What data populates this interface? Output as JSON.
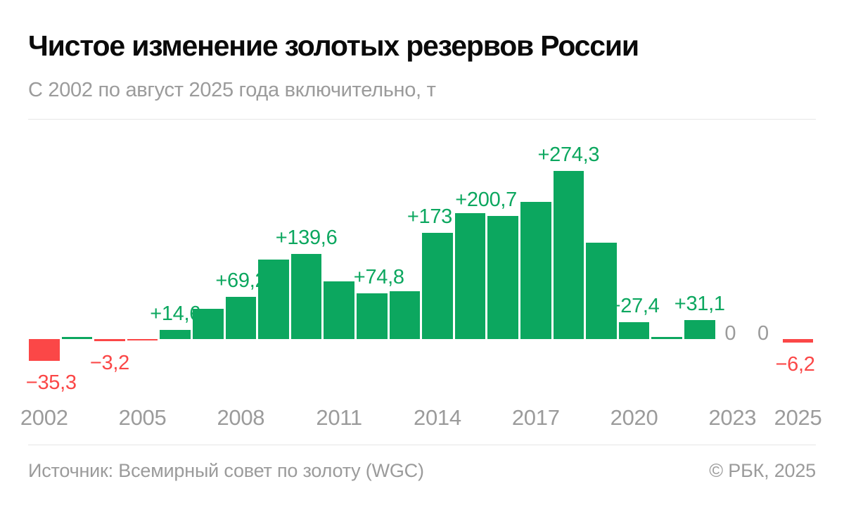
{
  "header": {
    "title": "Чистое изменение золотых резервов России",
    "subtitle": "С 2002 по август 2025 года включительно, т"
  },
  "chart_data": {
    "type": "bar",
    "title": "Чистое изменение золотых резервов России",
    "subtitle": "С 2002 по август 2025 года включительно, т",
    "unit": "т",
    "ylim": [
      -50,
      300
    ],
    "grid": false,
    "legend": "none",
    "colors": {
      "positive": "#0ca75f",
      "negative": "#fb4747",
      "zero_label": "#9b9b9b",
      "axis_tick": "#9b9b9b"
    },
    "axis_ticks": [
      2002,
      2005,
      2008,
      2011,
      2014,
      2017,
      2020,
      2023,
      2025
    ],
    "points": [
      {
        "year": 2002,
        "value": -35.3,
        "label": "−35,3",
        "label_pos": "below",
        "dx": 10
      },
      {
        "year": 2003,
        "value": 3.8,
        "label": null,
        "label_pos": null,
        "dx": 0
      },
      {
        "year": 2004,
        "value": -3.2,
        "label": "−3,2",
        "label_pos": "below",
        "dx": 0
      },
      {
        "year": 2005,
        "value": -2.3,
        "label": null,
        "label_pos": null,
        "dx": 0
      },
      {
        "year": 2006,
        "value": 14.6,
        "label": "+14,6",
        "label_pos": "above",
        "dx": 0
      },
      {
        "year": 2007,
        "value": 49.2,
        "label": null,
        "label_pos": null,
        "dx": 0
      },
      {
        "year": 2008,
        "value": 69.2,
        "label": "+69,2",
        "label_pos": "above",
        "dx": 0
      },
      {
        "year": 2009,
        "value": 130,
        "label": null,
        "label_pos": null,
        "dx": 0
      },
      {
        "year": 2010,
        "value": 139.6,
        "label": "+139,6",
        "label_pos": "above",
        "dx": 0
      },
      {
        "year": 2011,
        "value": 94,
        "label": null,
        "label_pos": null,
        "dx": 0
      },
      {
        "year": 2012,
        "value": 74.8,
        "label": "+74,8",
        "label_pos": "above",
        "dx": 10
      },
      {
        "year": 2013,
        "value": 78,
        "label": null,
        "label_pos": null,
        "dx": 0
      },
      {
        "year": 2014,
        "value": 173,
        "label": "+173",
        "label_pos": "above",
        "dx": -11
      },
      {
        "year": 2015,
        "value": 206,
        "label": null,
        "label_pos": null,
        "dx": 0
      },
      {
        "year": 2016,
        "value": 200.7,
        "label": "+200,7",
        "label_pos": "above",
        "dx": -24
      },
      {
        "year": 2017,
        "value": 224,
        "label": null,
        "label_pos": null,
        "dx": 0
      },
      {
        "year": 2018,
        "value": 274.3,
        "label": "+274,3",
        "label_pos": "above",
        "dx": 0
      },
      {
        "year": 2019,
        "value": 158,
        "label": null,
        "label_pos": null,
        "dx": 0
      },
      {
        "year": 2020,
        "value": 27.4,
        "label": "+27,4",
        "label_pos": "above",
        "dx": 0
      },
      {
        "year": 2021,
        "value": 3,
        "label": null,
        "label_pos": null,
        "dx": 0
      },
      {
        "year": 2022,
        "value": 31.1,
        "label": "+31,1",
        "label_pos": "above",
        "dx": 0
      },
      {
        "year": 2023,
        "value": 0,
        "label": "0",
        "label_pos": "axis",
        "dx": -3
      },
      {
        "year": 2024,
        "value": 0,
        "label": "0",
        "label_pos": "axis",
        "dx": -3
      },
      {
        "year": 2025,
        "value": -6.2,
        "label": "−6,2",
        "label_pos": "below",
        "dx": -4
      }
    ]
  },
  "footer": {
    "source": "Источник: Всемирный совет по золоту (WGC)",
    "copyright": "© РБК, 2025"
  }
}
